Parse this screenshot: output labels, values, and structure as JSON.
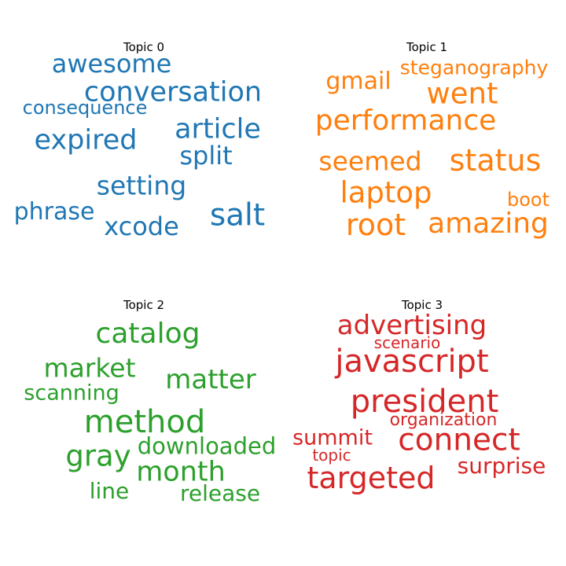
{
  "topics": [
    {
      "title": "Topic 0",
      "color": "#1f77b4",
      "words": [
        "awesome",
        "conversation",
        "consequence",
        "article",
        "expired",
        "split",
        "setting",
        "phrase",
        "salt",
        "xcode"
      ]
    },
    {
      "title": "Topic 1",
      "color": "#ff7f0e",
      "words": [
        "steganography",
        "gmail",
        "went",
        "performance",
        "seemed",
        "status",
        "laptop",
        "boot",
        "root",
        "amazing"
      ]
    },
    {
      "title": "Topic 2",
      "color": "#2ca02c",
      "words": [
        "catalog",
        "market",
        "matter",
        "scanning",
        "method",
        "downloaded",
        "gray",
        "month",
        "line",
        "release"
      ]
    },
    {
      "title": "Topic 3",
      "color": "#d62728",
      "words": [
        "advertising",
        "scenario",
        "javascript",
        "president",
        "organization",
        "summit",
        "connect",
        "topic",
        "surprise",
        "targeted"
      ]
    }
  ]
}
